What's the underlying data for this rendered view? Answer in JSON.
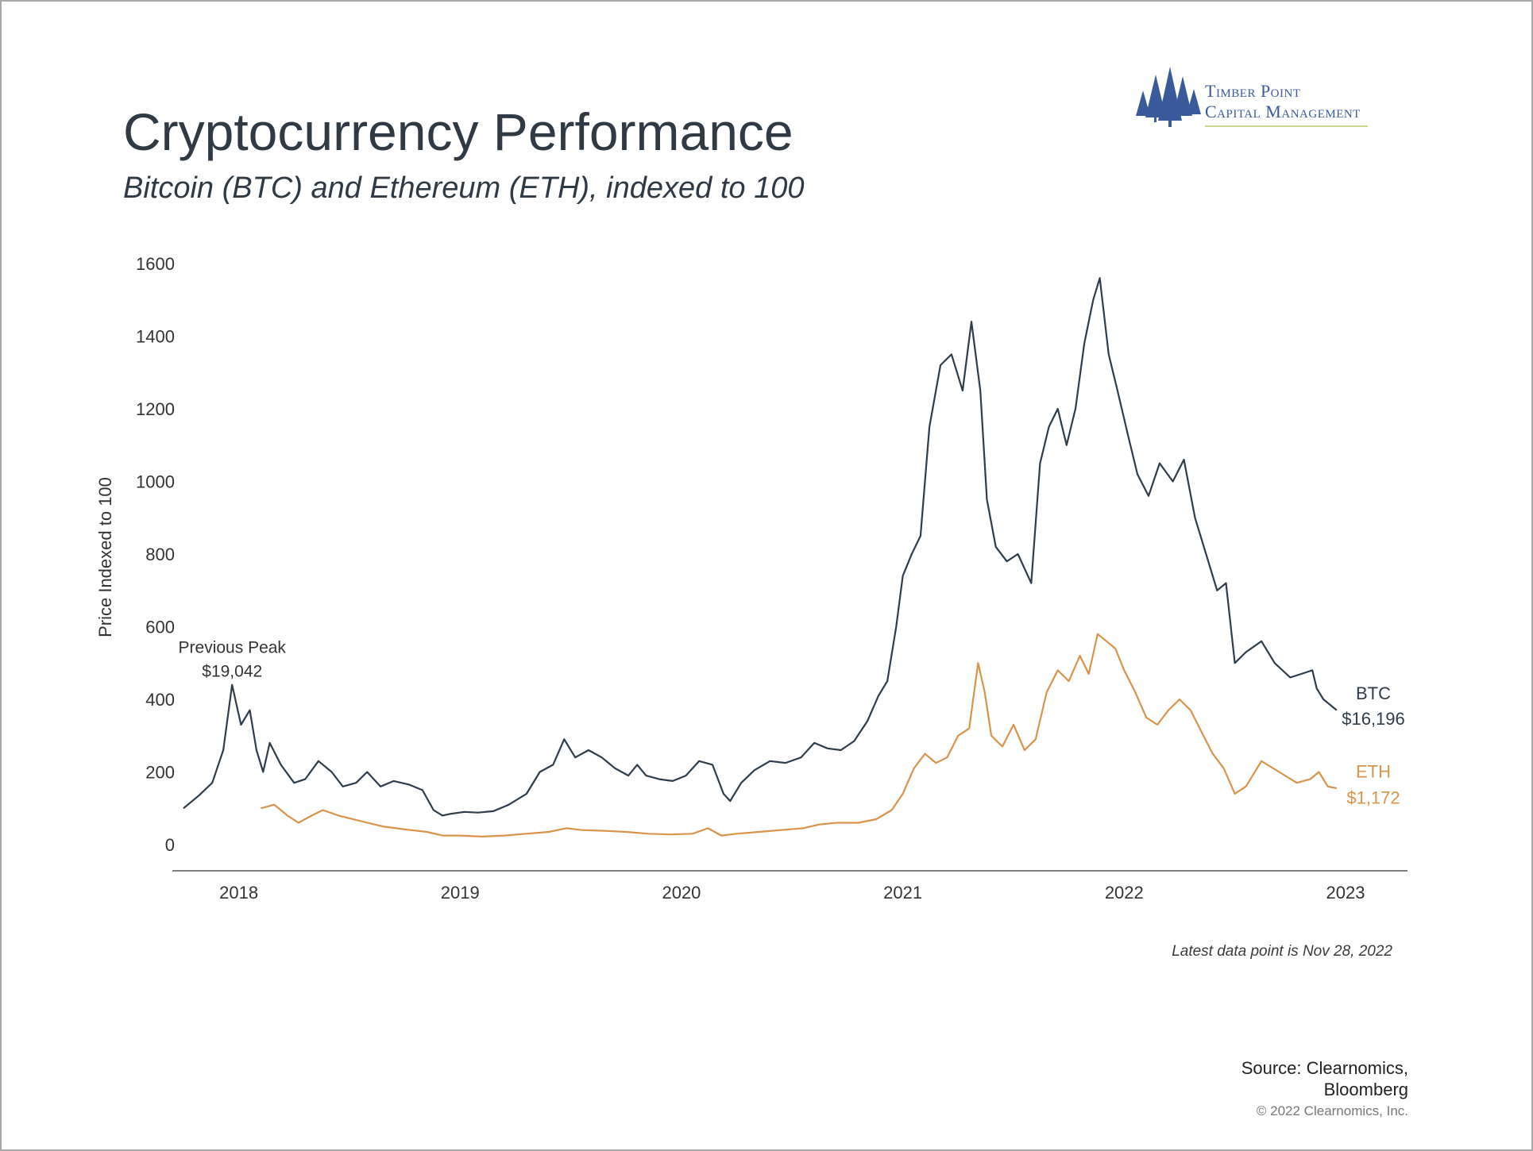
{
  "header": {
    "title": "Cryptocurrency Performance",
    "subtitle": "Bitcoin (BTC) and Ethereum (ETH), indexed to 100"
  },
  "logo": {
    "line1": "Timber Point",
    "line2": "Capital Management",
    "color": "#3a5a9c"
  },
  "footer": {
    "latest_note": "Latest data point is Nov 28, 2022",
    "source_line1": "Source: Clearnomics,",
    "source_line2": "Bloomberg",
    "copyright": "© 2022 Clearnomics, Inc."
  },
  "chart_data": {
    "type": "line",
    "title": "Cryptocurrency Performance",
    "subtitle": "Bitcoin (BTC) and Ethereum (ETH), indexed to 100",
    "ylabel": "Price Indexed to 100",
    "xlabel": "",
    "ylim": [
      0,
      1600
    ],
    "yticks": [
      0,
      200,
      400,
      600,
      800,
      1000,
      1200,
      1400,
      1600
    ],
    "xlim": [
      2017.7,
      2023.28
    ],
    "xticks": [
      2018,
      2019,
      2020,
      2021,
      2022,
      2023
    ],
    "grid": false,
    "legend": "end-of-line labels",
    "series": [
      {
        "name": "BTC",
        "end_label": "$16,196",
        "color": "#2e3d4c",
        "points": [
          [
            2017.75,
            100
          ],
          [
            2017.82,
            135
          ],
          [
            2017.88,
            170
          ],
          [
            2017.93,
            260
          ],
          [
            2017.97,
            440
          ],
          [
            2018.01,
            330
          ],
          [
            2018.05,
            370
          ],
          [
            2018.08,
            260
          ],
          [
            2018.11,
            200
          ],
          [
            2018.14,
            280
          ],
          [
            2018.19,
            220
          ],
          [
            2018.25,
            170
          ],
          [
            2018.3,
            180
          ],
          [
            2018.36,
            230
          ],
          [
            2018.42,
            200
          ],
          [
            2018.47,
            160
          ],
          [
            2018.53,
            170
          ],
          [
            2018.58,
            200
          ],
          [
            2018.64,
            160
          ],
          [
            2018.7,
            175
          ],
          [
            2018.77,
            165
          ],
          [
            2018.83,
            150
          ],
          [
            2018.88,
            95
          ],
          [
            2018.92,
            80
          ],
          [
            2018.96,
            85
          ],
          [
            2019.02,
            90
          ],
          [
            2019.08,
            88
          ],
          [
            2019.15,
            92
          ],
          [
            2019.22,
            110
          ],
          [
            2019.3,
            140
          ],
          [
            2019.36,
            200
          ],
          [
            2019.42,
            220
          ],
          [
            2019.47,
            290
          ],
          [
            2019.52,
            240
          ],
          [
            2019.58,
            260
          ],
          [
            2019.64,
            240
          ],
          [
            2019.7,
            210
          ],
          [
            2019.76,
            190
          ],
          [
            2019.8,
            220
          ],
          [
            2019.84,
            190
          ],
          [
            2019.9,
            180
          ],
          [
            2019.96,
            175
          ],
          [
            2020.02,
            190
          ],
          [
            2020.08,
            230
          ],
          [
            2020.14,
            220
          ],
          [
            2020.19,
            140
          ],
          [
            2020.22,
            120
          ],
          [
            2020.27,
            170
          ],
          [
            2020.33,
            205
          ],
          [
            2020.4,
            230
          ],
          [
            2020.47,
            225
          ],
          [
            2020.54,
            240
          ],
          [
            2020.6,
            280
          ],
          [
            2020.66,
            265
          ],
          [
            2020.72,
            260
          ],
          [
            2020.78,
            285
          ],
          [
            2020.84,
            340
          ],
          [
            2020.89,
            410
          ],
          [
            2020.93,
            450
          ],
          [
            2020.97,
            600
          ],
          [
            2021.0,
            740
          ],
          [
            2021.04,
            800
          ],
          [
            2021.08,
            850
          ],
          [
            2021.12,
            1150
          ],
          [
            2021.17,
            1320
          ],
          [
            2021.22,
            1350
          ],
          [
            2021.27,
            1250
          ],
          [
            2021.31,
            1440
          ],
          [
            2021.35,
            1250
          ],
          [
            2021.38,
            950
          ],
          [
            2021.42,
            820
          ],
          [
            2021.47,
            780
          ],
          [
            2021.52,
            800
          ],
          [
            2021.58,
            720
          ],
          [
            2021.62,
            1050
          ],
          [
            2021.66,
            1150
          ],
          [
            2021.7,
            1200
          ],
          [
            2021.74,
            1100
          ],
          [
            2021.78,
            1200
          ],
          [
            2021.82,
            1380
          ],
          [
            2021.86,
            1500
          ],
          [
            2021.89,
            1560
          ],
          [
            2021.93,
            1350
          ],
          [
            2021.97,
            1250
          ],
          [
            2022.02,
            1120
          ],
          [
            2022.06,
            1020
          ],
          [
            2022.11,
            960
          ],
          [
            2022.16,
            1050
          ],
          [
            2022.22,
            1000
          ],
          [
            2022.27,
            1060
          ],
          [
            2022.32,
            900
          ],
          [
            2022.37,
            800
          ],
          [
            2022.42,
            700
          ],
          [
            2022.46,
            720
          ],
          [
            2022.5,
            500
          ],
          [
            2022.55,
            530
          ],
          [
            2022.62,
            560
          ],
          [
            2022.68,
            500
          ],
          [
            2022.75,
            460
          ],
          [
            2022.8,
            470
          ],
          [
            2022.85,
            480
          ],
          [
            2022.87,
            430
          ],
          [
            2022.9,
            400
          ],
          [
            2022.94,
            380
          ],
          [
            2022.96,
            370
          ]
        ]
      },
      {
        "name": "ETH",
        "end_label": "$1,172",
        "color": "#d9934a",
        "points": [
          [
            2018.1,
            100
          ],
          [
            2018.16,
            110
          ],
          [
            2018.22,
            80
          ],
          [
            2018.27,
            60
          ],
          [
            2018.33,
            80
          ],
          [
            2018.38,
            95
          ],
          [
            2018.45,
            80
          ],
          [
            2018.55,
            65
          ],
          [
            2018.65,
            50
          ],
          [
            2018.75,
            42
          ],
          [
            2018.85,
            35
          ],
          [
            2018.92,
            25
          ],
          [
            2019.0,
            25
          ],
          [
            2019.1,
            22
          ],
          [
            2019.2,
            25
          ],
          [
            2019.3,
            30
          ],
          [
            2019.4,
            35
          ],
          [
            2019.48,
            45
          ],
          [
            2019.55,
            40
          ],
          [
            2019.65,
            38
          ],
          [
            2019.75,
            35
          ],
          [
            2019.85,
            30
          ],
          [
            2019.95,
            28
          ],
          [
            2020.05,
            30
          ],
          [
            2020.12,
            45
          ],
          [
            2020.18,
            25
          ],
          [
            2020.25,
            30
          ],
          [
            2020.35,
            35
          ],
          [
            2020.45,
            40
          ],
          [
            2020.55,
            45
          ],
          [
            2020.62,
            55
          ],
          [
            2020.7,
            60
          ],
          [
            2020.8,
            60
          ],
          [
            2020.88,
            70
          ],
          [
            2020.95,
            95
          ],
          [
            2021.0,
            140
          ],
          [
            2021.05,
            210
          ],
          [
            2021.1,
            250
          ],
          [
            2021.15,
            225
          ],
          [
            2021.2,
            240
          ],
          [
            2021.25,
            300
          ],
          [
            2021.3,
            320
          ],
          [
            2021.34,
            500
          ],
          [
            2021.37,
            420
          ],
          [
            2021.4,
            300
          ],
          [
            2021.45,
            270
          ],
          [
            2021.5,
            330
          ],
          [
            2021.55,
            260
          ],
          [
            2021.6,
            290
          ],
          [
            2021.65,
            420
          ],
          [
            2021.7,
            480
          ],
          [
            2021.75,
            450
          ],
          [
            2021.8,
            520
          ],
          [
            2021.84,
            470
          ],
          [
            2021.88,
            580
          ],
          [
            2021.92,
            560
          ],
          [
            2021.96,
            540
          ],
          [
            2022.0,
            480
          ],
          [
            2022.05,
            420
          ],
          [
            2022.1,
            350
          ],
          [
            2022.15,
            330
          ],
          [
            2022.2,
            370
          ],
          [
            2022.25,
            400
          ],
          [
            2022.3,
            370
          ],
          [
            2022.35,
            310
          ],
          [
            2022.4,
            250
          ],
          [
            2022.45,
            210
          ],
          [
            2022.5,
            140
          ],
          [
            2022.55,
            160
          ],
          [
            2022.62,
            230
          ],
          [
            2022.7,
            200
          ],
          [
            2022.78,
            170
          ],
          [
            2022.84,
            180
          ],
          [
            2022.88,
            200
          ],
          [
            2022.92,
            160
          ],
          [
            2022.96,
            155
          ]
        ]
      }
    ],
    "annotations": [
      {
        "text": "Previous Peak",
        "value": "$19,042",
        "x": 2017.97,
        "y": 440
      }
    ]
  }
}
